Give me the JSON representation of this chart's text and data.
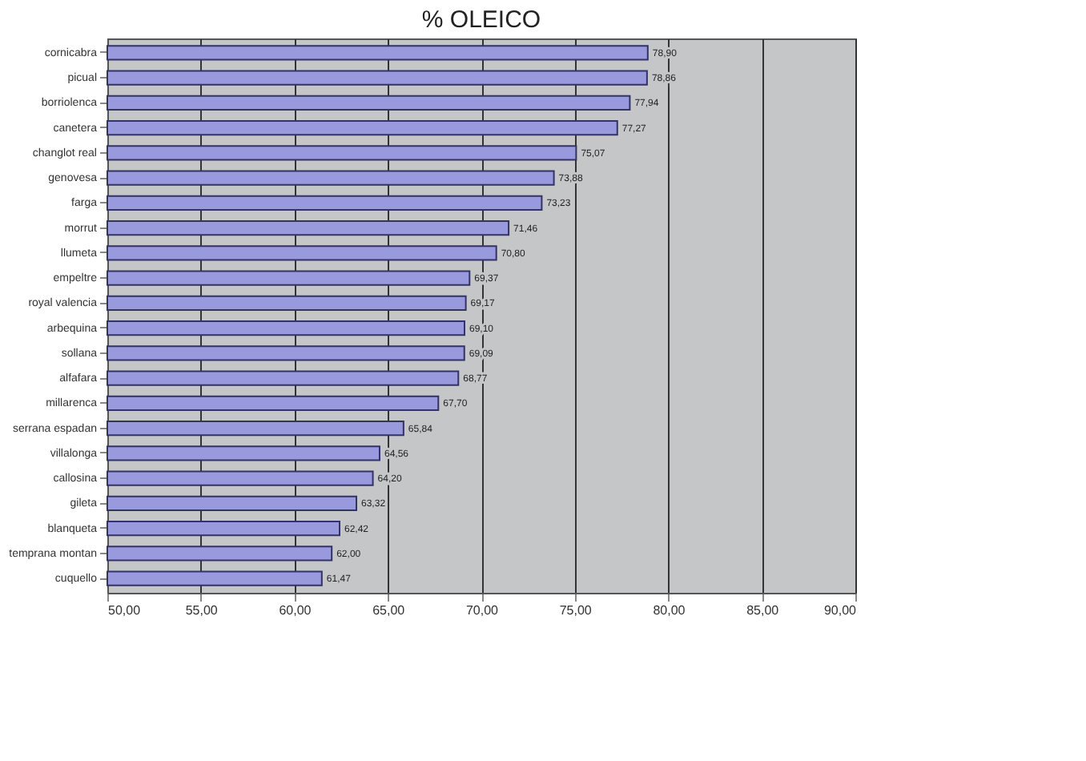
{
  "chart_data": {
    "type": "bar",
    "orientation": "horizontal",
    "title": "% OLEICO",
    "categories": [
      "cornicabra",
      "picual",
      "borriolenca",
      "canetera",
      "changlot real",
      "genovesa",
      "farga",
      "morrut",
      "llumeta",
      "empeltre",
      "royal valencia",
      "arbequina",
      "sollana",
      "alfafara",
      "millarenca",
      "serrana espadan",
      "villalonga",
      "callosina",
      "gileta",
      "blanqueta",
      "temprana montan",
      "cuquello"
    ],
    "values": [
      78.9,
      78.86,
      77.94,
      77.27,
      75.07,
      73.88,
      73.23,
      71.46,
      70.8,
      69.37,
      69.17,
      69.1,
      69.09,
      68.77,
      67.7,
      65.84,
      64.56,
      64.2,
      63.32,
      62.42,
      62.0,
      61.47
    ],
    "value_labels": [
      "78,90",
      "78,86",
      "77,94",
      "77,27",
      "75,07",
      "73,88",
      "73,23",
      "71,46",
      "70,80",
      "69,37",
      "69,17",
      "69,10",
      "69,09",
      "68,77",
      "67,70",
      "65,84",
      "64,56",
      "64,20",
      "63,32",
      "62,42",
      "62,00",
      "61,47"
    ],
    "color": "#9999dd",
    "xlim": [
      50,
      90
    ],
    "xticks": [
      {
        "value": 50,
        "label": "50,00"
      },
      {
        "value": 55,
        "label": "55,00"
      },
      {
        "value": 60,
        "label": "60,00"
      },
      {
        "value": 65,
        "label": "65,00"
      },
      {
        "value": 70,
        "label": "70,00"
      },
      {
        "value": 75,
        "label": "75,00"
      },
      {
        "value": 80,
        "label": "80,00"
      },
      {
        "value": 85,
        "label": "85,00"
      },
      {
        "value": 90,
        "label": "90,00"
      }
    ],
    "grid": "x"
  }
}
